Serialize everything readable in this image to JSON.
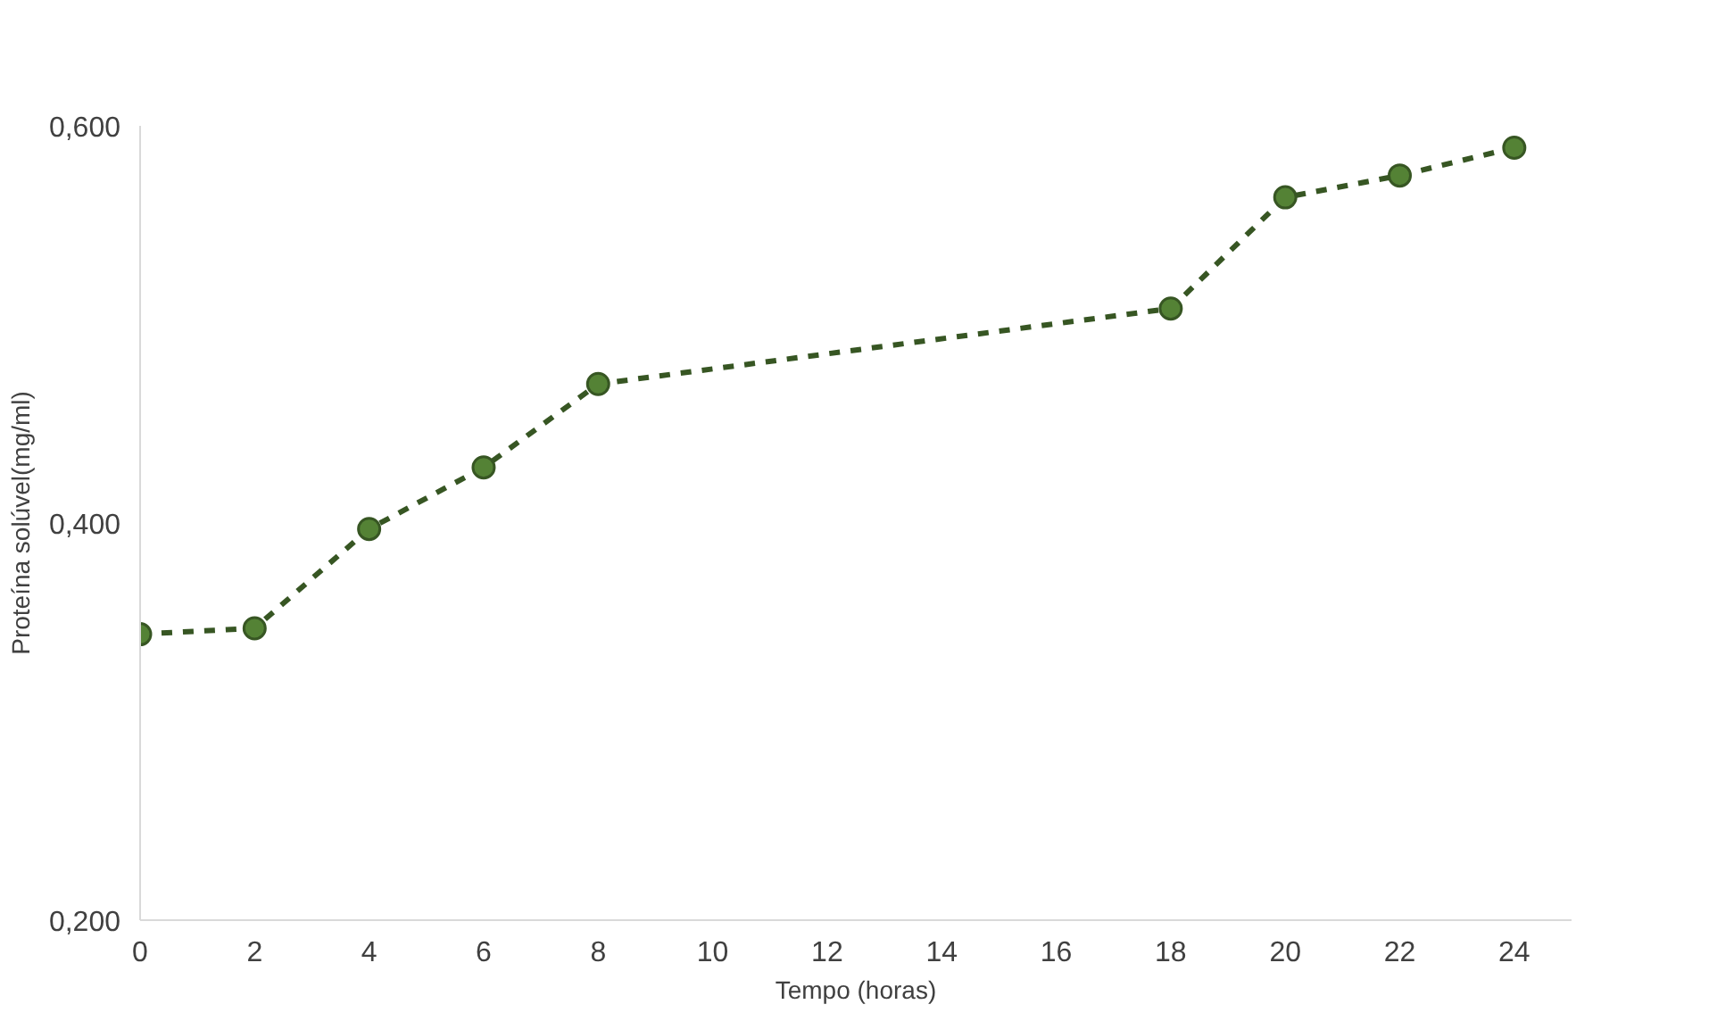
{
  "chart_data": {
    "type": "line",
    "xlabel": "Tempo (horas)",
    "ylabel": "Proteína solúvel(mg/ml)",
    "x": [
      0,
      2,
      4,
      6,
      8,
      18,
      20,
      22,
      24
    ],
    "series": [
      {
        "color": "#375623",
        "values": [
          0.344,
          0.347,
          0.397,
          0.428,
          0.47,
          0.508,
          0.564,
          0.575,
          0.589
        ]
      }
    ],
    "xlim": [
      0,
      25
    ],
    "xticks": [
      0,
      2,
      4,
      6,
      8,
      10,
      12,
      14,
      16,
      18,
      20,
      22,
      24
    ],
    "ylim": [
      0.2,
      0.6
    ],
    "yticks": [
      {
        "value": 0.2,
        "label": "0,200"
      },
      {
        "value": 0.4,
        "label": "0,400"
      },
      {
        "value": 0.6,
        "label": "0,600"
      }
    ],
    "grid": false,
    "marker": "circle",
    "line_style": "dashed"
  }
}
